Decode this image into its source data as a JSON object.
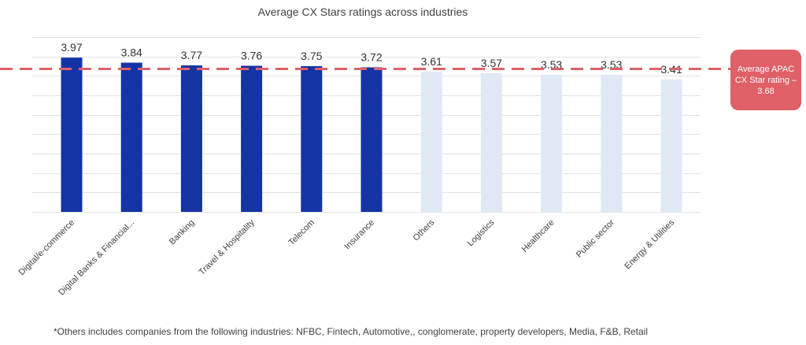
{
  "chart_data": {
    "type": "bar",
    "title": "Average CX Stars ratings across industries",
    "categories": [
      "Digital/e-commerce",
      "Digital Banks & Financial...",
      "Banking",
      "Travel & Hospitality",
      "Telecom",
      "Insurance",
      "Others",
      "Logistics",
      "Healthcare",
      "Public sector",
      "Energy & Utilities"
    ],
    "values": [
      3.97,
      3.84,
      3.77,
      3.76,
      3.75,
      3.72,
      3.61,
      3.57,
      3.53,
      3.53,
      3.41
    ],
    "value_labels": [
      "3.97",
      "3.84",
      "3.77",
      "3.76",
      "3.75",
      "3.72",
      "3.61",
      "3.57",
      "3.53",
      "3.53",
      "3.41"
    ],
    "highlight": [
      true,
      true,
      true,
      true,
      true,
      true,
      false,
      false,
      false,
      false,
      false
    ],
    "ylim": [
      0,
      4.5
    ],
    "grid": true,
    "reference_line": {
      "value": 3.68,
      "style": "dashed"
    },
    "xlabel": "",
    "ylabel": ""
  },
  "colors": {
    "above_average_bar": "#1434a4",
    "below_average_bar": "#dfe9f6",
    "average_line": "#e06068"
  },
  "callout": {
    "text": "Average APAC CX Star rating – 3.68"
  },
  "footnote": "*Others includes companies from the following industries: NFBC, Fintech, Automotive,, conglomerate, property developers, Media, F&B, Retail"
}
